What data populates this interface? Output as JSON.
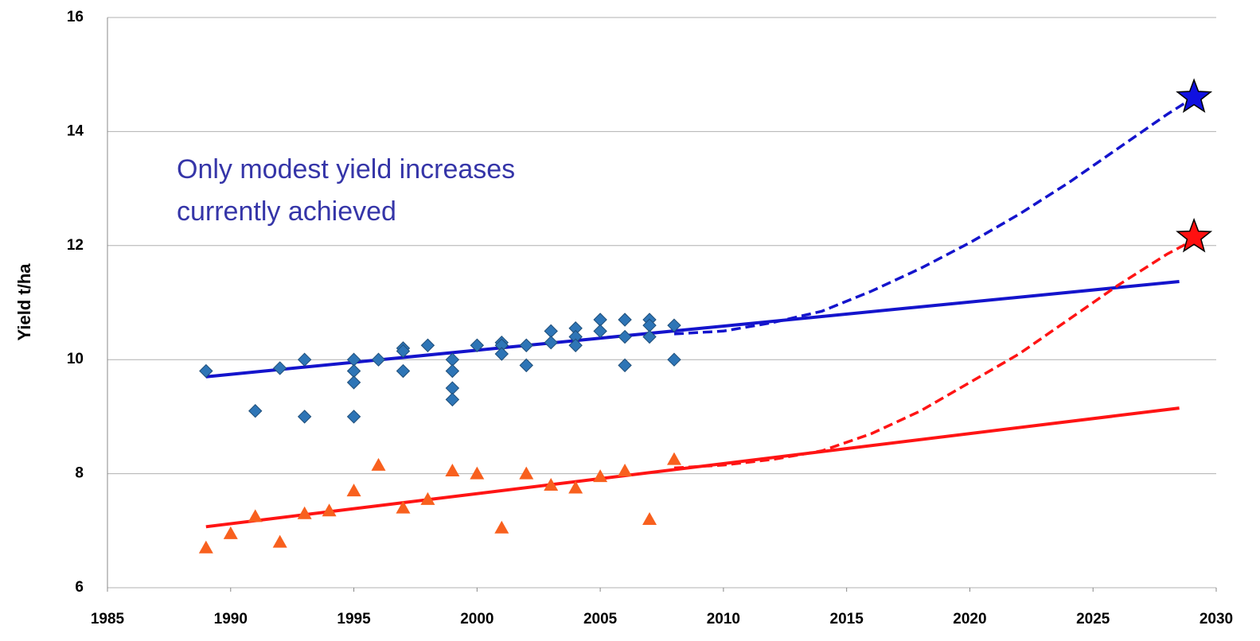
{
  "chart_data": {
    "type": "scatter",
    "y_label": "Yield t/ha",
    "annotation": [
      "Only modest yield increases",
      "currently achieved"
    ],
    "annotation_color": "#3535a8",
    "xlim": [
      1985,
      2030
    ],
    "xticks": [
      1985,
      1990,
      1995,
      2000,
      2005,
      2010,
      2015,
      2020,
      2025,
      2030
    ],
    "ylim": [
      6,
      16
    ],
    "yticks": [
      6,
      8,
      10,
      12,
      14,
      16
    ],
    "grid": true,
    "series": [
      {
        "style": "line",
        "color": "#1414cc",
        "x": [
          1989,
          2028.5
        ],
        "values": [
          9.7,
          11.37
        ]
      },
      {
        "style": "line",
        "color": "#ff1414",
        "x": [
          1989,
          2028.5
        ],
        "values": [
          7.07,
          9.15
        ]
      },
      {
        "style": "dashed",
        "color": "#1414cc",
        "x": [
          2008,
          2010,
          2012,
          2014,
          2016,
          2018,
          2020,
          2022,
          2024,
          2026,
          2028,
          2029.1
        ],
        "values": [
          10.45,
          10.5,
          10.65,
          10.85,
          11.2,
          11.6,
          12.05,
          12.55,
          13.1,
          13.7,
          14.3,
          14.6
        ]
      },
      {
        "style": "dashed",
        "color": "#ff1414",
        "x": [
          2008,
          2010,
          2012,
          2014,
          2016,
          2018,
          2020,
          2022,
          2024,
          2026,
          2028,
          2029.1
        ],
        "values": [
          8.1,
          8.15,
          8.25,
          8.4,
          8.7,
          9.1,
          9.6,
          10.1,
          10.7,
          11.3,
          11.85,
          12.1
        ]
      },
      {
        "style": "diamond",
        "color": "#2e75b6",
        "x": [
          1989,
          1991,
          1992,
          1993,
          1993,
          1995,
          1995,
          1995,
          1995,
          1996,
          1997,
          1997,
          1997,
          1998,
          1999,
          1999,
          1999,
          1999,
          2000,
          2001,
          2001,
          2001,
          2002,
          2002,
          2003,
          2003,
          2004,
          2004,
          2004,
          2005,
          2005,
          2006,
          2006,
          2006,
          2007,
          2007,
          2007,
          2008,
          2008
        ],
        "values": [
          9.8,
          9.1,
          9.85,
          10.0,
          9.0,
          10.0,
          9.8,
          9.6,
          9.0,
          10.0,
          10.2,
          10.15,
          9.8,
          10.25,
          10.0,
          9.8,
          9.5,
          9.3,
          10.25,
          10.3,
          10.25,
          10.1,
          10.25,
          9.9,
          10.5,
          10.3,
          10.55,
          10.4,
          10.25,
          10.7,
          10.5,
          10.7,
          10.4,
          9.9,
          10.7,
          10.6,
          10.4,
          10.6,
          10.0
        ]
      },
      {
        "style": "triangle",
        "color": "#f8601e",
        "x": [
          1989,
          1990,
          1991,
          1992,
          1993,
          1994,
          1995,
          1996,
          1997,
          1998,
          1999,
          2000,
          2001,
          2002,
          2003,
          2004,
          2005,
          2006,
          2007,
          2008
        ],
        "values": [
          6.7,
          6.95,
          7.25,
          6.8,
          7.3,
          7.35,
          7.7,
          8.15,
          7.4,
          7.55,
          8.05,
          8.0,
          7.05,
          8.0,
          7.8,
          7.75,
          7.95,
          8.05,
          7.2,
          8.25
        ]
      },
      {
        "style": "star",
        "color": "#1010e0",
        "x": [
          2029.1
        ],
        "values": [
          14.6
        ]
      },
      {
        "style": "star",
        "color": "#ff1010",
        "x": [
          2029.1
        ],
        "values": [
          12.15
        ]
      }
    ]
  }
}
